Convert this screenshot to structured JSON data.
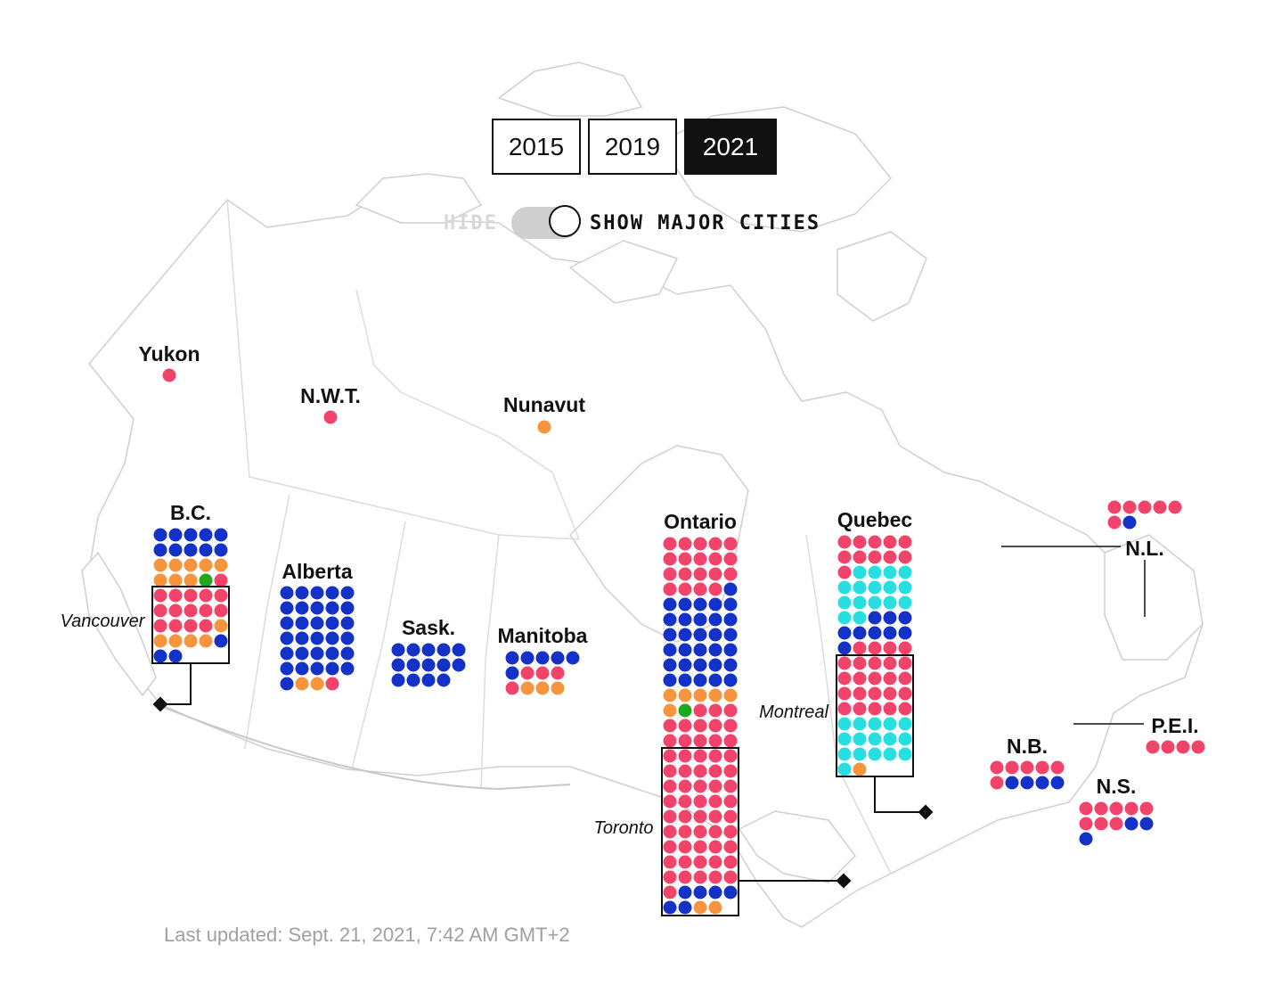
{
  "years": {
    "tabs": [
      {
        "label": "2015",
        "active": false
      },
      {
        "label": "2019",
        "active": false
      },
      {
        "label": "2021",
        "active": true
      }
    ]
  },
  "toggle": {
    "off_label": "HIDE",
    "on_label": "SHOW MAJOR CITIES",
    "state": "on"
  },
  "colors": {
    "Liberal": "#f2436a",
    "Conservative": "#1432c8",
    "NDP": "#f7953e",
    "Green": "#1da81d",
    "Bloc": "#27dfe0"
  },
  "regions": [
    {
      "name": "Yukon",
      "seats": [
        "Liberal"
      ]
    },
    {
      "name": "N.W.T.",
      "seats": [
        "Liberal"
      ]
    },
    {
      "name": "Nunavut",
      "seats": [
        "NDP"
      ]
    },
    {
      "name": "B.C.",
      "seats": {
        "Conservative": 13,
        "NDP": 13,
        "Green": 1,
        "Liberal": 15
      },
      "city": {
        "name": "Vancouver"
      }
    },
    {
      "name": "Alberta",
      "seats": {
        "Conservative": 31,
        "NDP": 2,
        "Liberal": 1
      }
    },
    {
      "name": "Sask.",
      "seats": {
        "Conservative": 14
      }
    },
    {
      "name": "Manitoba",
      "seats": {
        "Conservative": 6,
        "Liberal": 4,
        "NDP": 3
      }
    },
    {
      "name": "Ontario",
      "seats": {
        "Liberal": 78,
        "Conservative": 37,
        "NDP": 5,
        "Green": 1
      },
      "city": {
        "name": "Toronto"
      }
    },
    {
      "name": "Quebec",
      "seats": {
        "Liberal": 35,
        "Bloc": 32,
        "Conservative": 10,
        "NDP": 1
      },
      "city": {
        "name": "Montreal"
      }
    },
    {
      "name": "N.L.",
      "seats": {
        "Liberal": 6,
        "Conservative": 1
      }
    },
    {
      "name": "P.E.I.",
      "seats": {
        "Liberal": 4
      }
    },
    {
      "name": "N.B.",
      "seats": {
        "Liberal": 6,
        "Conservative": 4
      }
    },
    {
      "name": "N.S.",
      "seats": {
        "Liberal": 8,
        "Conservative": 3
      }
    }
  ],
  "footer": {
    "text": "Last updated: Sept. 21, 2021, 7:42 AM GMT+2"
  }
}
